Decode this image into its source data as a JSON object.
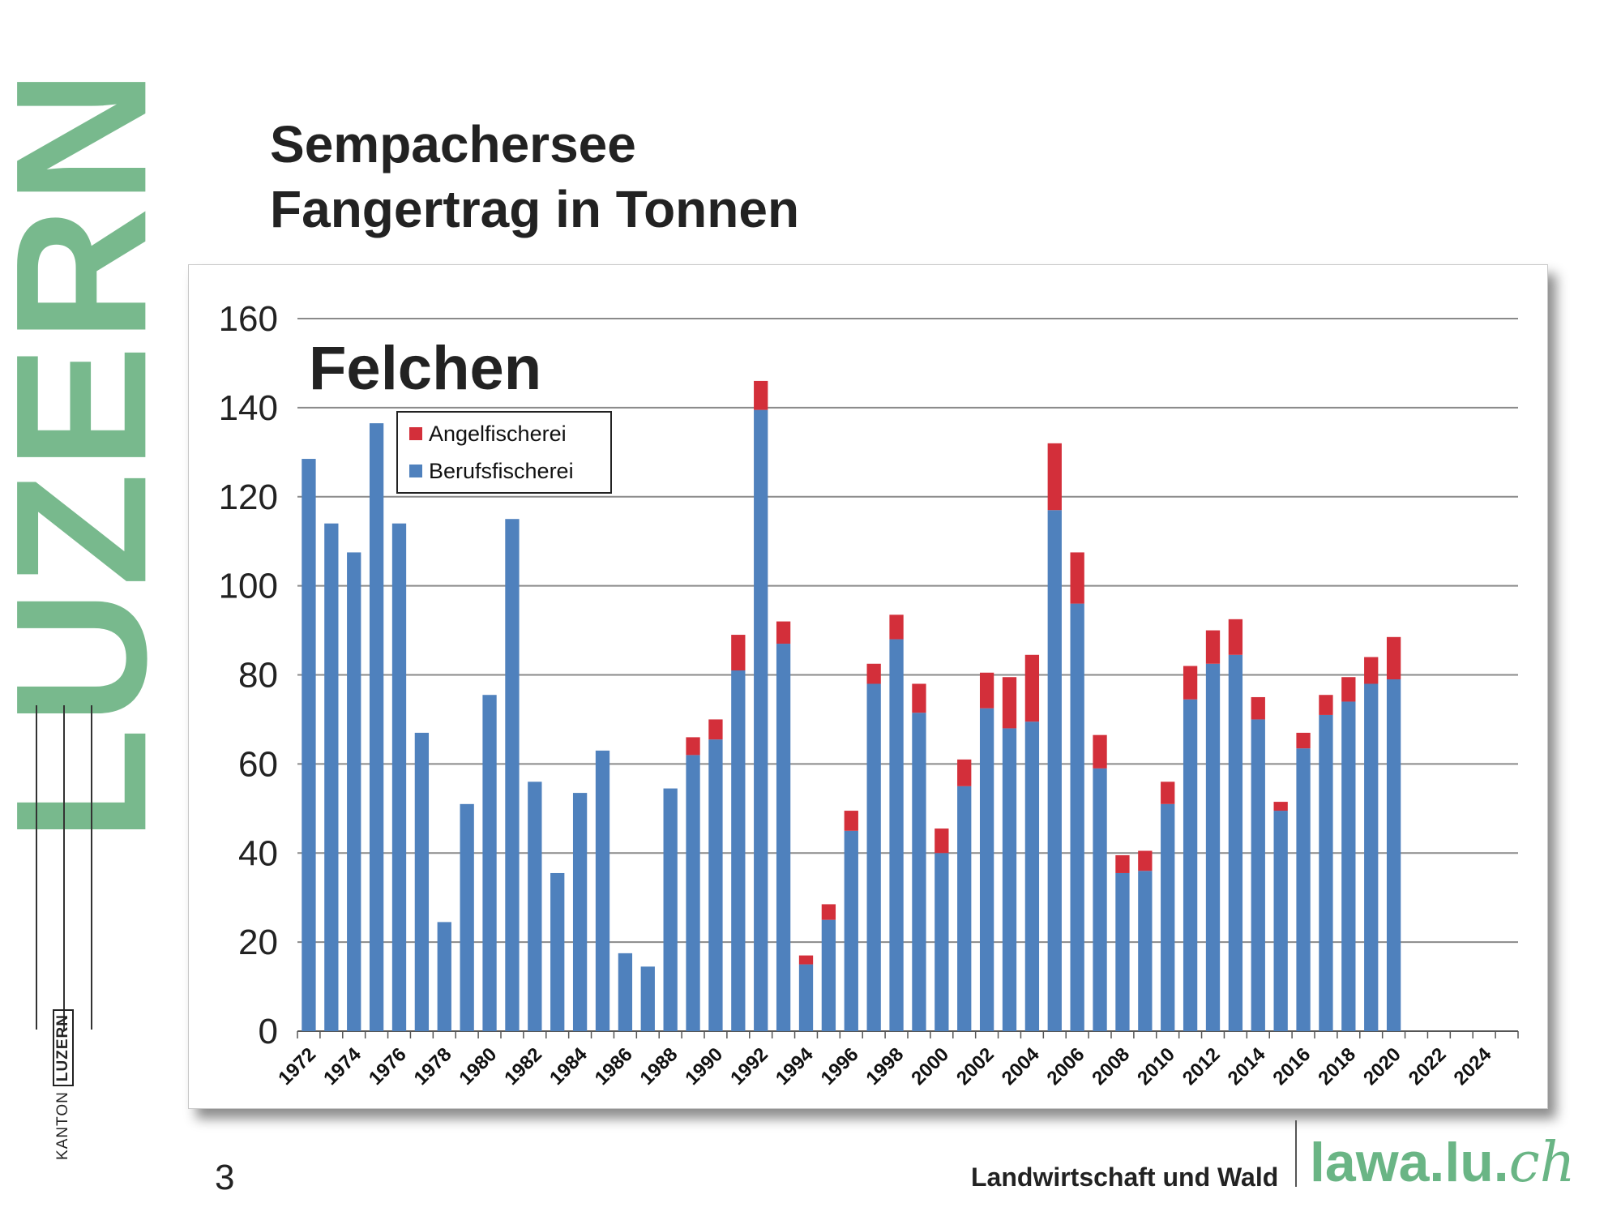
{
  "brand": {
    "word": "LUZERN",
    "color": "#78b98d",
    "kanton": "KANTON",
    "luzern": "LUZERN"
  },
  "title": {
    "line1": "Sempachersee",
    "line2": "Fangertrag in Tonnen"
  },
  "page_number": "3",
  "footer": {
    "department": "Landwirtschaft und Wald",
    "site_main": "lawa.lu.",
    "site_tld": "ch",
    "site_color": "#6ab585"
  },
  "chart_data": {
    "type": "bar",
    "stacked": true,
    "title": "Felchen",
    "xlabel": "",
    "ylabel": "",
    "ylim": [
      0,
      160
    ],
    "yticks": [
      0,
      20,
      40,
      60,
      80,
      100,
      120,
      140,
      160
    ],
    "grid": true,
    "legend_position": "top-left",
    "x_tick_labels": [
      "1972",
      "1974",
      "1976",
      "1978",
      "1980",
      "1982",
      "1984",
      "1986",
      "1988",
      "1990",
      "1992",
      "1994",
      "1996",
      "1998",
      "2000",
      "2002",
      "2004",
      "2006",
      "2008",
      "2010",
      "2012",
      "2014",
      "2016",
      "2018",
      "2020",
      "2022",
      "2024"
    ],
    "categories": [
      1972,
      1973,
      1974,
      1975,
      1976,
      1977,
      1978,
      1979,
      1980,
      1981,
      1982,
      1983,
      1984,
      1985,
      1986,
      1987,
      1988,
      1989,
      1990,
      1991,
      1992,
      1993,
      1994,
      1995,
      1996,
      1997,
      1998,
      1999,
      2000,
      2001,
      2002,
      2003,
      2004,
      2005,
      2006,
      2007,
      2008,
      2009,
      2010,
      2011,
      2012,
      2013,
      2014,
      2015,
      2016,
      2017,
      2018,
      2019,
      2020,
      2021,
      2022,
      2023,
      2024,
      2025
    ],
    "series": [
      {
        "name": "Berufsfischerei",
        "color": "#4f81bd",
        "values": [
          128.5,
          114,
          107.5,
          136.5,
          114,
          67,
          24.5,
          51,
          75.5,
          115,
          56,
          35.5,
          53.5,
          63,
          17.5,
          14.5,
          54.5,
          62,
          65.5,
          81,
          139.5,
          87,
          15,
          25,
          45,
          78,
          88,
          71.5,
          40,
          55,
          72.5,
          68,
          69.5,
          117,
          96,
          59,
          35.5,
          36,
          51,
          74.5,
          82.5,
          84.5,
          70,
          49.5,
          63.5,
          71,
          74,
          78,
          79,
          null,
          null,
          null,
          null,
          null
        ]
      },
      {
        "name": "Angelfischerei",
        "color": "#d32f3a",
        "values": [
          0,
          0,
          0,
          0,
          0,
          0,
          0,
          0,
          0,
          0,
          0,
          0,
          0,
          0,
          0,
          0,
          0,
          4,
          4.5,
          8,
          6.5,
          5,
          2,
          3.5,
          4.5,
          4.5,
          5.5,
          6.5,
          5.5,
          6,
          8,
          11.5,
          15,
          15,
          11.5,
          7.5,
          4,
          4.5,
          5,
          7.5,
          7.5,
          8,
          5,
          2,
          3.5,
          4.5,
          5.5,
          6,
          9.5,
          null,
          null,
          null,
          null,
          null
        ]
      }
    ]
  }
}
